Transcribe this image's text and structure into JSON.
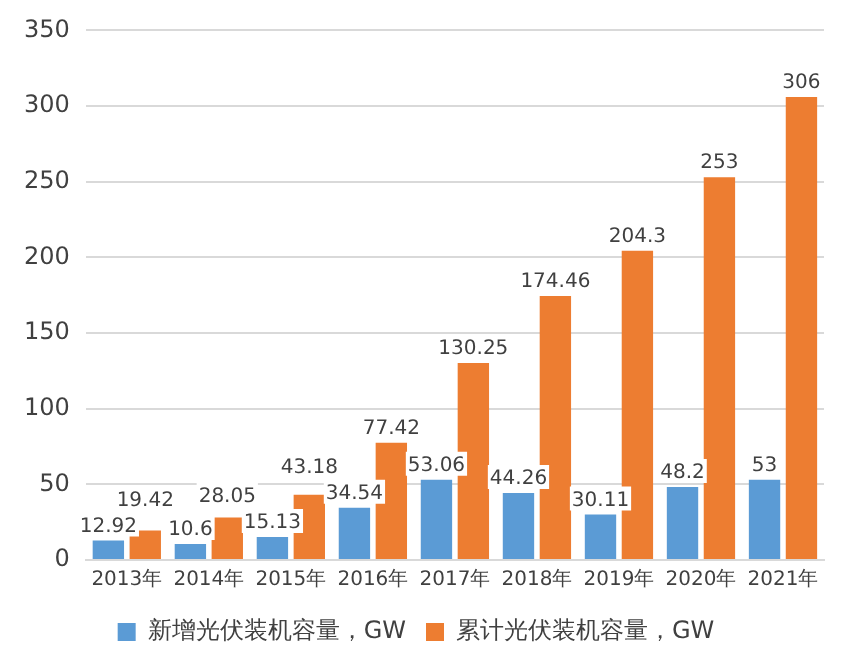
{
  "chart_data": {
    "type": "bar",
    "categories": [
      "2013年",
      "2014年",
      "2015年",
      "2016年",
      "2017年",
      "2018年",
      "2019年",
      "2020年",
      "2021年"
    ],
    "series": [
      {
        "name": "新增光伏装机容量，GW",
        "color": "#5b9bd5",
        "values": [
          12.92,
          10.6,
          15.13,
          34.54,
          53.06,
          44.26,
          30.11,
          48.2,
          53
        ]
      },
      {
        "name": "累计光伏装机容量，GW",
        "color": "#ed7d31",
        "values": [
          19.42,
          28.05,
          43.18,
          77.42,
          130.25,
          174.46,
          204.3,
          253,
          306
        ]
      }
    ],
    "ylim": [
      0,
      350
    ],
    "yticks": [
      0,
      50,
      100,
      150,
      200,
      250,
      300,
      350
    ],
    "grid": "y",
    "legend": "bottom",
    "data_labels": true
  }
}
